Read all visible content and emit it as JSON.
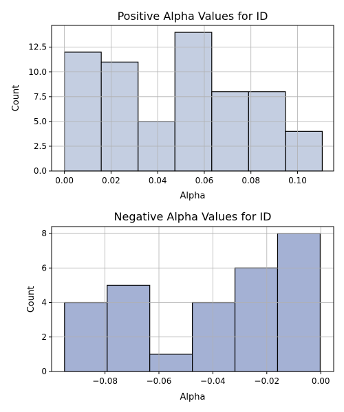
{
  "chart_data": [
    {
      "type": "bar",
      "title": "Positive Alpha Values for ID",
      "xlabel": "Alpha",
      "ylabel": "Count",
      "bar_color": "#c4cee1",
      "edge_color": "#000000",
      "grid": true,
      "xlim": [
        -0.0055,
        0.1155
      ],
      "ylim": [
        0,
        14.7
      ],
      "xticks": [
        0.0,
        0.02,
        0.04,
        0.06,
        0.08,
        0.1
      ],
      "xtick_labels": [
        "0.00",
        "0.02",
        "0.04",
        "0.06",
        "0.08",
        "0.10"
      ],
      "yticks": [
        0.0,
        2.5,
        5.0,
        7.5,
        10.0,
        12.5
      ],
      "ytick_labels": [
        "0.0",
        "2.5",
        "5.0",
        "7.5",
        "10.0",
        "12.5"
      ],
      "bins": [
        {
          "x0": 0.0,
          "x1": 0.0158,
          "count": 12
        },
        {
          "x0": 0.0158,
          "x1": 0.0316,
          "count": 11
        },
        {
          "x0": 0.0316,
          "x1": 0.0474,
          "count": 5
        },
        {
          "x0": 0.0474,
          "x1": 0.0632,
          "count": 14
        },
        {
          "x0": 0.0632,
          "x1": 0.079,
          "count": 8
        },
        {
          "x0": 0.079,
          "x1": 0.0948,
          "count": 8
        },
        {
          "x0": 0.0948,
          "x1": 0.1106,
          "count": 4
        }
      ]
    },
    {
      "type": "bar",
      "title": "Negative Alpha Values for ID",
      "xlabel": "Alpha",
      "ylabel": "Count",
      "bar_color": "#a4b1d4",
      "edge_color": "#000000",
      "grid": true,
      "xlim": [
        -0.0998,
        0.0048
      ],
      "ylim": [
        0,
        8.4
      ],
      "xticks": [
        -0.08,
        -0.06,
        -0.04,
        -0.02,
        0.0
      ],
      "xtick_labels": [
        "−0.08",
        "−0.06",
        "−0.04",
        "−0.02",
        "0.00"
      ],
      "yticks": [
        0,
        2,
        4,
        6,
        8
      ],
      "ytick_labels": [
        "0",
        "2",
        "4",
        "6",
        "8"
      ],
      "bins": [
        {
          "x0": -0.095,
          "x1": -0.0792,
          "count": 4
        },
        {
          "x0": -0.0792,
          "x1": -0.0634,
          "count": 5
        },
        {
          "x0": -0.0634,
          "x1": -0.0476,
          "count": 1
        },
        {
          "x0": -0.0476,
          "x1": -0.0318,
          "count": 4
        },
        {
          "x0": -0.0318,
          "x1": -0.016,
          "count": 6
        },
        {
          "x0": -0.016,
          "x1": -0.0002,
          "count": 8
        }
      ]
    }
  ]
}
